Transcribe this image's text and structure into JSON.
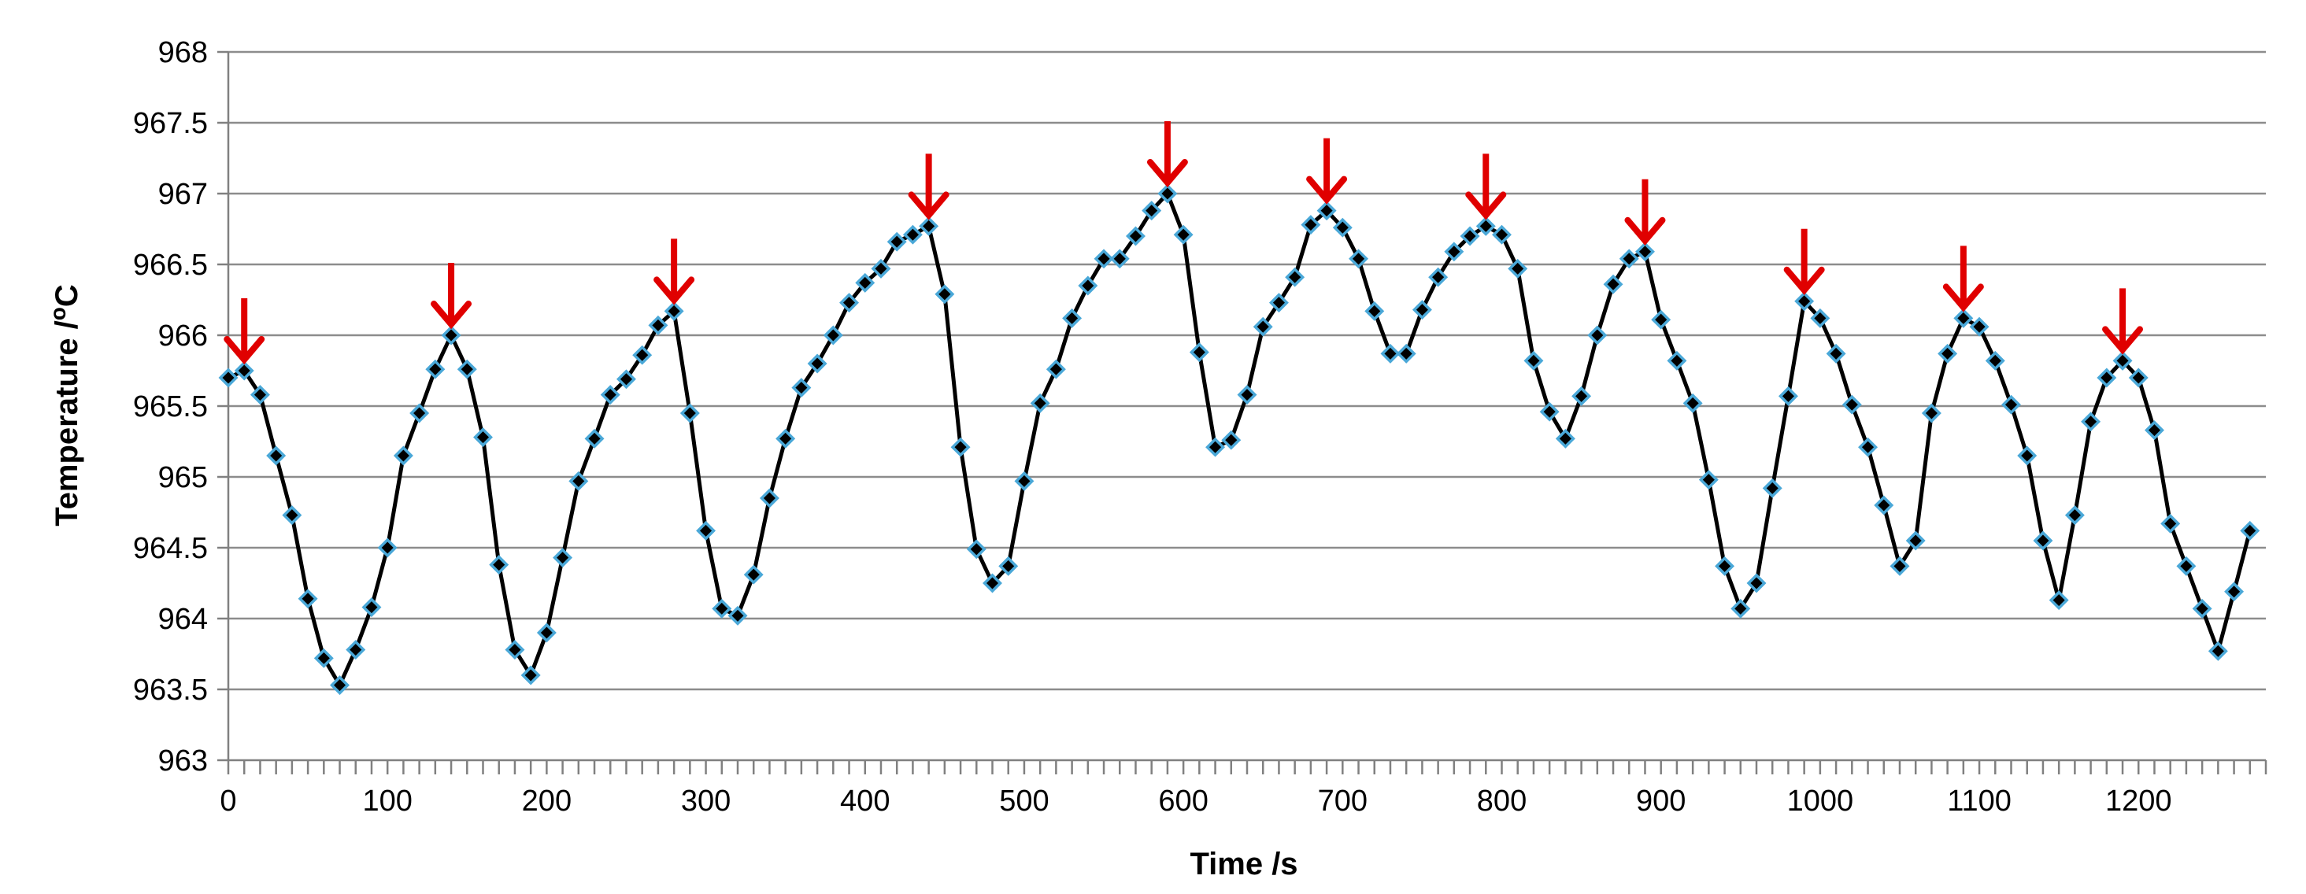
{
  "chart_data": {
    "type": "line",
    "title": "",
    "xlabel": "Time /s",
    "ylabel_prefix": "Temperature /",
    "ylabel_sup": "o",
    "ylabel_suffix": "C",
    "xlim": [
      0,
      1280
    ],
    "ylim": [
      963,
      968
    ],
    "x_ticks": [
      0,
      100,
      200,
      300,
      400,
      500,
      600,
      700,
      800,
      900,
      1000,
      1100,
      1200
    ],
    "y_ticks": [
      963,
      963.5,
      964,
      964.5,
      965,
      965.5,
      966,
      966.5,
      967,
      967.5,
      968
    ],
    "grid": true,
    "colors": {
      "line": "#000000",
      "marker_fill": "#000000",
      "marker_edge": "#4aa8d8",
      "grid": "#8c8c8c",
      "arrow": "#e00000"
    },
    "series": [
      {
        "name": "Temperature",
        "x": [
          0,
          10,
          20,
          30,
          40,
          50,
          60,
          70,
          80,
          90,
          100,
          110,
          120,
          130,
          140,
          150,
          160,
          170,
          180,
          190,
          200,
          210,
          220,
          230,
          240,
          250,
          260,
          270,
          280,
          290,
          300,
          310,
          320,
          330,
          340,
          350,
          360,
          370,
          380,
          390,
          400,
          410,
          420,
          430,
          440,
          450,
          460,
          470,
          480,
          490,
          500,
          510,
          520,
          530,
          540,
          550,
          560,
          570,
          580,
          590,
          600,
          610,
          620,
          630,
          640,
          650,
          660,
          670,
          680,
          690,
          700,
          710,
          720,
          730,
          740,
          750,
          760,
          770,
          780,
          790,
          800,
          810,
          820,
          830,
          840,
          850,
          860,
          870,
          880,
          890,
          900,
          910,
          920,
          930,
          940,
          950,
          960,
          970,
          980,
          990,
          1000,
          1010,
          1020,
          1030,
          1040,
          1050,
          1060,
          1070,
          1080,
          1090,
          1100,
          1110,
          1120,
          1130,
          1140,
          1150,
          1160,
          1170,
          1180,
          1190,
          1200,
          1210,
          1220,
          1230,
          1240,
          1250,
          1260,
          1270
        ],
        "y": [
          965.7,
          965.75,
          965.58,
          965.15,
          964.73,
          964.14,
          963.72,
          963.53,
          963.78,
          964.08,
          964.5,
          965.15,
          965.45,
          965.76,
          966.0,
          965.76,
          965.28,
          964.38,
          963.78,
          963.6,
          963.9,
          964.43,
          964.97,
          965.27,
          965.58,
          965.69,
          965.86,
          966.07,
          966.17,
          965.45,
          964.62,
          964.07,
          964.02,
          964.31,
          964.85,
          965.27,
          965.63,
          965.8,
          966.0,
          966.23,
          966.37,
          966.47,
          966.66,
          966.71,
          966.77,
          966.29,
          965.21,
          964.49,
          964.25,
          964.37,
          964.97,
          965.52,
          965.76,
          966.12,
          966.35,
          966.54,
          966.54,
          966.7,
          966.88,
          967.0,
          966.71,
          965.88,
          965.21,
          965.26,
          965.58,
          966.06,
          966.23,
          966.41,
          966.78,
          966.88,
          966.76,
          966.54,
          966.17,
          965.87,
          965.87,
          966.18,
          966.41,
          966.59,
          966.7,
          966.77,
          966.71,
          966.47,
          965.82,
          965.46,
          965.27,
          965.57,
          966.0,
          966.36,
          966.54,
          966.59,
          966.11,
          965.82,
          965.52,
          964.98,
          964.37,
          964.07,
          964.25,
          964.92,
          965.57,
          966.24,
          966.12,
          965.87,
          965.51,
          965.21,
          964.8,
          964.37,
          964.55,
          965.45,
          965.87,
          966.12,
          966.06,
          965.82,
          965.51,
          965.15,
          964.55,
          964.13,
          964.73,
          965.39,
          965.7,
          965.82,
          965.7,
          965.33,
          964.67,
          964.37,
          964.07,
          963.77,
          964.19,
          964.62
        ]
      }
    ],
    "annotations": {
      "type": "down-arrow",
      "at_x": [
        10,
        140,
        280,
        440,
        590,
        690,
        790,
        890,
        990,
        1090,
        1190
      ],
      "at_y": [
        965.75,
        966.0,
        966.17,
        966.77,
        967.0,
        966.88,
        966.77,
        966.59,
        966.24,
        966.12,
        965.82
      ]
    }
  }
}
